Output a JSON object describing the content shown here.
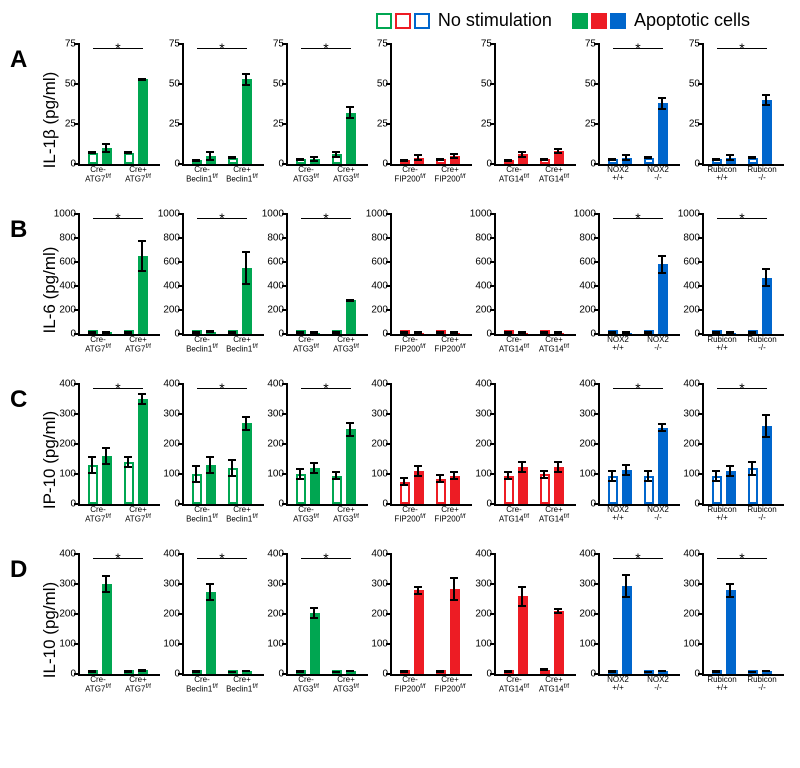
{
  "legend": {
    "no_stim": "No stimulation",
    "apop": "Apoptotic cells"
  },
  "colors": {
    "green": "#00a651",
    "red": "#ed1c24",
    "blue": "#0066cc",
    "black": "#000"
  },
  "ylabels": {
    "A": "IL-1β (pg/ml)",
    "B": "IL-6 (pg/ml)",
    "C": "IP-10 (pg/ml)",
    "D": "IL-10 (pg/ml)"
  },
  "rowLabels": [
    "A",
    "B",
    "C",
    "D"
  ],
  "yscales": {
    "A": {
      "max": 75,
      "ticks": [
        0,
        25,
        50,
        75
      ]
    },
    "B": {
      "max": 1000,
      "ticks": [
        0,
        200,
        400,
        600,
        800,
        1000
      ]
    },
    "C": {
      "max": 400,
      "ticks": [
        0,
        100,
        200,
        300,
        400
      ]
    },
    "D": {
      "max": 400,
      "ticks": [
        0,
        100,
        200,
        300,
        400
      ]
    }
  },
  "genotypes": [
    {
      "color": "green",
      "labels": [
        "Cre-<br>ATG7<sup>f/f</sup>",
        "Cre+<br>ATG7<sup>f/f</sup>"
      ]
    },
    {
      "color": "green",
      "labels": [
        "Cre-<br>Beclin1<sup>f/f</sup>",
        "Cre+<br>Beclin1<sup>f/f</sup>"
      ]
    },
    {
      "color": "green",
      "labels": [
        "Cre-<br>ATG3<sup>f/f</sup>",
        "Cre+<br>ATG3<sup>f/f</sup>"
      ]
    },
    {
      "color": "red",
      "labels": [
        "Cre-<br>FIP200<sup>f/f</sup>",
        "Cre+<br>FIP200<sup>f/f</sup>"
      ]
    },
    {
      "color": "red",
      "labels": [
        "Cre-<br>ATG14<sup>f/f</sup>",
        "Cre+<br>ATG14<sup>f/f</sup>"
      ]
    },
    {
      "color": "blue",
      "labels": [
        "NOX2<br>+/+",
        "NOX2<br>-/-"
      ]
    },
    {
      "color": "blue",
      "labels": [
        "Rubicon<br>+/+",
        "Rubicon<br>-/-"
      ]
    }
  ],
  "data": {
    "A": [
      {
        "bars": [
          {
            "v": 7,
            "e": 1,
            "f": 0
          },
          {
            "v": 10,
            "e": 3,
            "f": 1
          },
          {
            "v": 7,
            "e": 1,
            "f": 0
          },
          {
            "v": 53,
            "e": 1,
            "f": 1
          }
        ],
        "sig": 1
      },
      {
        "bars": [
          {
            "v": 2,
            "e": 1,
            "f": 0
          },
          {
            "v": 5,
            "e": 3,
            "f": 1
          },
          {
            "v": 4,
            "e": 1,
            "f": 0
          },
          {
            "v": 53,
            "e": 4,
            "f": 1
          }
        ],
        "sig": 1
      },
      {
        "bars": [
          {
            "v": 3,
            "e": 1,
            "f": 0
          },
          {
            "v": 3,
            "e": 2,
            "f": 1
          },
          {
            "v": 6,
            "e": 2,
            "f": 0
          },
          {
            "v": 32,
            "e": 4,
            "f": 1
          }
        ],
        "sig": 1
      },
      {
        "bars": [
          {
            "v": 2,
            "e": 1,
            "f": 0
          },
          {
            "v": 4,
            "e": 2,
            "f": 1
          },
          {
            "v": 3,
            "e": 1,
            "f": 0
          },
          {
            "v": 5,
            "e": 2,
            "f": 1
          }
        ],
        "sig": 0
      },
      {
        "bars": [
          {
            "v": 2,
            "e": 1,
            "f": 0
          },
          {
            "v": 6,
            "e": 2,
            "f": 1
          },
          {
            "v": 3,
            "e": 1,
            "f": 0
          },
          {
            "v": 8,
            "e": 2,
            "f": 1
          }
        ],
        "sig": 0
      },
      {
        "bars": [
          {
            "v": 3,
            "e": 1,
            "f": 0
          },
          {
            "v": 4,
            "e": 2,
            "f": 1
          },
          {
            "v": 4,
            "e": 1,
            "f": 0
          },
          {
            "v": 38,
            "e": 4,
            "f": 1
          }
        ],
        "sig": 1
      },
      {
        "bars": [
          {
            "v": 3,
            "e": 1,
            "f": 0
          },
          {
            "v": 4,
            "e": 2,
            "f": 1
          },
          {
            "v": 4,
            "e": 1,
            "f": 0
          },
          {
            "v": 40,
            "e": 4,
            "f": 1
          }
        ],
        "sig": 1
      }
    ],
    "B": [
      {
        "bars": [
          {
            "v": 10,
            "e": 5,
            "f": 0
          },
          {
            "v": 15,
            "e": 5,
            "f": 1
          },
          {
            "v": 10,
            "e": 5,
            "f": 0
          },
          {
            "v": 650,
            "e": 130,
            "f": 1
          }
        ],
        "sig": 1
      },
      {
        "bars": [
          {
            "v": 10,
            "e": 5,
            "f": 0
          },
          {
            "v": 20,
            "e": 10,
            "f": 1
          },
          {
            "v": 10,
            "e": 5,
            "f": 0
          },
          {
            "v": 550,
            "e": 140,
            "f": 1
          }
        ],
        "sig": 1
      },
      {
        "bars": [
          {
            "v": 8,
            "e": 4,
            "f": 0
          },
          {
            "v": 12,
            "e": 5,
            "f": 1
          },
          {
            "v": 8,
            "e": 4,
            "f": 0
          },
          {
            "v": 280,
            "e": 15,
            "f": 1
          }
        ],
        "sig": 1
      },
      {
        "bars": [
          {
            "v": 5,
            "e": 3,
            "f": 0
          },
          {
            "v": 8,
            "e": 4,
            "f": 1
          },
          {
            "v": 5,
            "e": 3,
            "f": 0
          },
          {
            "v": 10,
            "e": 5,
            "f": 1
          }
        ],
        "sig": 0
      },
      {
        "bars": [
          {
            "v": 5,
            "e": 3,
            "f": 0
          },
          {
            "v": 8,
            "e": 4,
            "f": 1
          },
          {
            "v": 5,
            "e": 3,
            "f": 0
          },
          {
            "v": 10,
            "e": 5,
            "f": 1
          }
        ],
        "sig": 0
      },
      {
        "bars": [
          {
            "v": 8,
            "e": 4,
            "f": 0
          },
          {
            "v": 12,
            "e": 5,
            "f": 1
          },
          {
            "v": 8,
            "e": 4,
            "f": 0
          },
          {
            "v": 580,
            "e": 80,
            "f": 1
          }
        ],
        "sig": 1
      },
      {
        "bars": [
          {
            "v": 8,
            "e": 4,
            "f": 0
          },
          {
            "v": 12,
            "e": 5,
            "f": 1
          },
          {
            "v": 8,
            "e": 4,
            "f": 0
          },
          {
            "v": 470,
            "e": 80,
            "f": 1
          }
        ],
        "sig": 1
      }
    ],
    "C": [
      {
        "bars": [
          {
            "v": 130,
            "e": 30,
            "f": 0
          },
          {
            "v": 160,
            "e": 30,
            "f": 1
          },
          {
            "v": 140,
            "e": 20,
            "f": 0
          },
          {
            "v": 350,
            "e": 20,
            "f": 1
          }
        ],
        "sig": 1
      },
      {
        "bars": [
          {
            "v": 100,
            "e": 30,
            "f": 0
          },
          {
            "v": 130,
            "e": 30,
            "f": 1
          },
          {
            "v": 120,
            "e": 30,
            "f": 0
          },
          {
            "v": 270,
            "e": 25,
            "f": 1
          }
        ],
        "sig": 1
      },
      {
        "bars": [
          {
            "v": 100,
            "e": 20,
            "f": 0
          },
          {
            "v": 120,
            "e": 20,
            "f": 1
          },
          {
            "v": 95,
            "e": 15,
            "f": 0
          },
          {
            "v": 250,
            "e": 25,
            "f": 1
          }
        ],
        "sig": 1
      },
      {
        "bars": [
          {
            "v": 75,
            "e": 15,
            "f": 0
          },
          {
            "v": 110,
            "e": 20,
            "f": 1
          },
          {
            "v": 85,
            "e": 15,
            "f": 0
          },
          {
            "v": 95,
            "e": 15,
            "f": 1
          }
        ],
        "sig": 0
      },
      {
        "bars": [
          {
            "v": 95,
            "e": 15,
            "f": 0
          },
          {
            "v": 125,
            "e": 20,
            "f": 1
          },
          {
            "v": 100,
            "e": 15,
            "f": 0
          },
          {
            "v": 125,
            "e": 20,
            "f": 1
          }
        ],
        "sig": 0
      },
      {
        "bars": [
          {
            "v": 95,
            "e": 20,
            "f": 0
          },
          {
            "v": 115,
            "e": 20,
            "f": 1
          },
          {
            "v": 95,
            "e": 20,
            "f": 0
          },
          {
            "v": 255,
            "e": 15,
            "f": 1
          }
        ],
        "sig": 1
      },
      {
        "bars": [
          {
            "v": 95,
            "e": 20,
            "f": 0
          },
          {
            "v": 110,
            "e": 20,
            "f": 1
          },
          {
            "v": 120,
            "e": 25,
            "f": 0
          },
          {
            "v": 260,
            "e": 40,
            "f": 1
          }
        ],
        "sig": 1
      }
    ],
    "D": [
      {
        "bars": [
          {
            "v": 10,
            "e": 5,
            "f": 0
          },
          {
            "v": 300,
            "e": 30,
            "f": 1
          },
          {
            "v": 8,
            "e": 4,
            "f": 0
          },
          {
            "v": 12,
            "e": 5,
            "f": 1
          }
        ],
        "sig": 1
      },
      {
        "bars": [
          {
            "v": 8,
            "e": 4,
            "f": 0
          },
          {
            "v": 275,
            "e": 30,
            "f": 1
          },
          {
            "v": 6,
            "e": 3,
            "f": 0
          },
          {
            "v": 10,
            "e": 4,
            "f": 1
          }
        ],
        "sig": 1
      },
      {
        "bars": [
          {
            "v": 8,
            "e": 4,
            "f": 0
          },
          {
            "v": 205,
            "e": 20,
            "f": 1
          },
          {
            "v": 6,
            "e": 3,
            "f": 0
          },
          {
            "v": 10,
            "e": 4,
            "f": 1
          }
        ],
        "sig": 1
      },
      {
        "bars": [
          {
            "v": 8,
            "e": 4,
            "f": 0
          },
          {
            "v": 280,
            "e": 15,
            "f": 1
          },
          {
            "v": 8,
            "e": 4,
            "f": 0
          },
          {
            "v": 285,
            "e": 40,
            "f": 1
          }
        ],
        "sig": 0
      },
      {
        "bars": [
          {
            "v": 8,
            "e": 4,
            "f": 0
          },
          {
            "v": 260,
            "e": 35,
            "f": 1
          },
          {
            "v": 15,
            "e": 5,
            "f": 0
          },
          {
            "v": 210,
            "e": 10,
            "f": 1
          }
        ],
        "sig": 0
      },
      {
        "bars": [
          {
            "v": 8,
            "e": 4,
            "f": 0
          },
          {
            "v": 295,
            "e": 40,
            "f": 1
          },
          {
            "v": 6,
            "e": 3,
            "f": 0
          },
          {
            "v": 10,
            "e": 4,
            "f": 1
          }
        ],
        "sig": 1
      },
      {
        "bars": [
          {
            "v": 8,
            "e": 4,
            "f": 0
          },
          {
            "v": 280,
            "e": 25,
            "f": 1
          },
          {
            "v": 6,
            "e": 3,
            "f": 0
          },
          {
            "v": 10,
            "e": 4,
            "f": 1
          }
        ],
        "sig": 1
      }
    ]
  }
}
